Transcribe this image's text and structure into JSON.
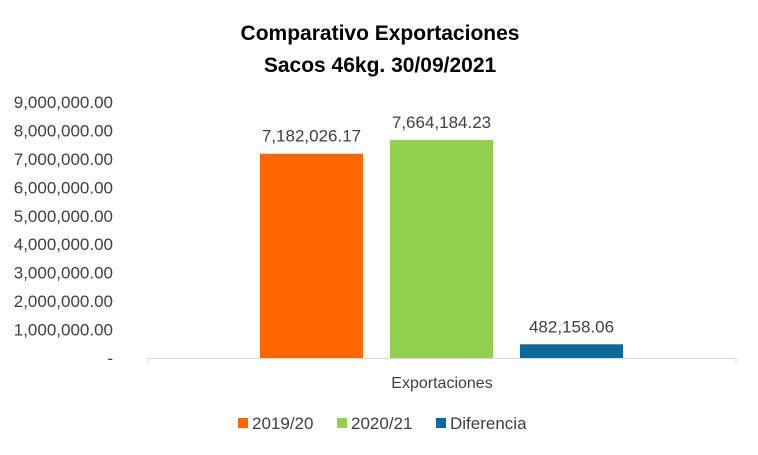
{
  "chart_data": {
    "type": "bar",
    "title": [
      "Comparativo  Exportaciones",
      "Sacos 46kg. 30/09/2021"
    ],
    "categories": [
      "Exportaciones"
    ],
    "series": [
      {
        "name": "2019/20",
        "values": [
          7182026.17
        ],
        "color": "#ff6600",
        "label": "7,182,026.17"
      },
      {
        "name": "2020/21",
        "values": [
          7664184.23
        ],
        "color": "#92d050",
        "label": "7,664,184.23"
      },
      {
        "name": "Diferencia",
        "values": [
          482158.06
        ],
        "color": "#0a6a9a",
        "label": "482,158.06"
      }
    ],
    "ylim": [
      0,
      9000000
    ],
    "yticks": [
      {
        "value": 0,
        "label": "-"
      },
      {
        "value": 1000000,
        "label": "1,000,000.00"
      },
      {
        "value": 2000000,
        "label": "2,000,000.00"
      },
      {
        "value": 3000000,
        "label": "3,000,000.00"
      },
      {
        "value": 4000000,
        "label": "4,000,000.00"
      },
      {
        "value": 5000000,
        "label": "5,000,000.00"
      },
      {
        "value": 6000000,
        "label": "6,000,000.00"
      },
      {
        "value": 7000000,
        "label": "7,000,000.00"
      },
      {
        "value": 8000000,
        "label": "8,000,000.00"
      },
      {
        "value": 9000000,
        "label": "9,000,000.00"
      }
    ],
    "xlabel": "",
    "ylabel": "",
    "grid": false,
    "legend_position": "bottom"
  }
}
